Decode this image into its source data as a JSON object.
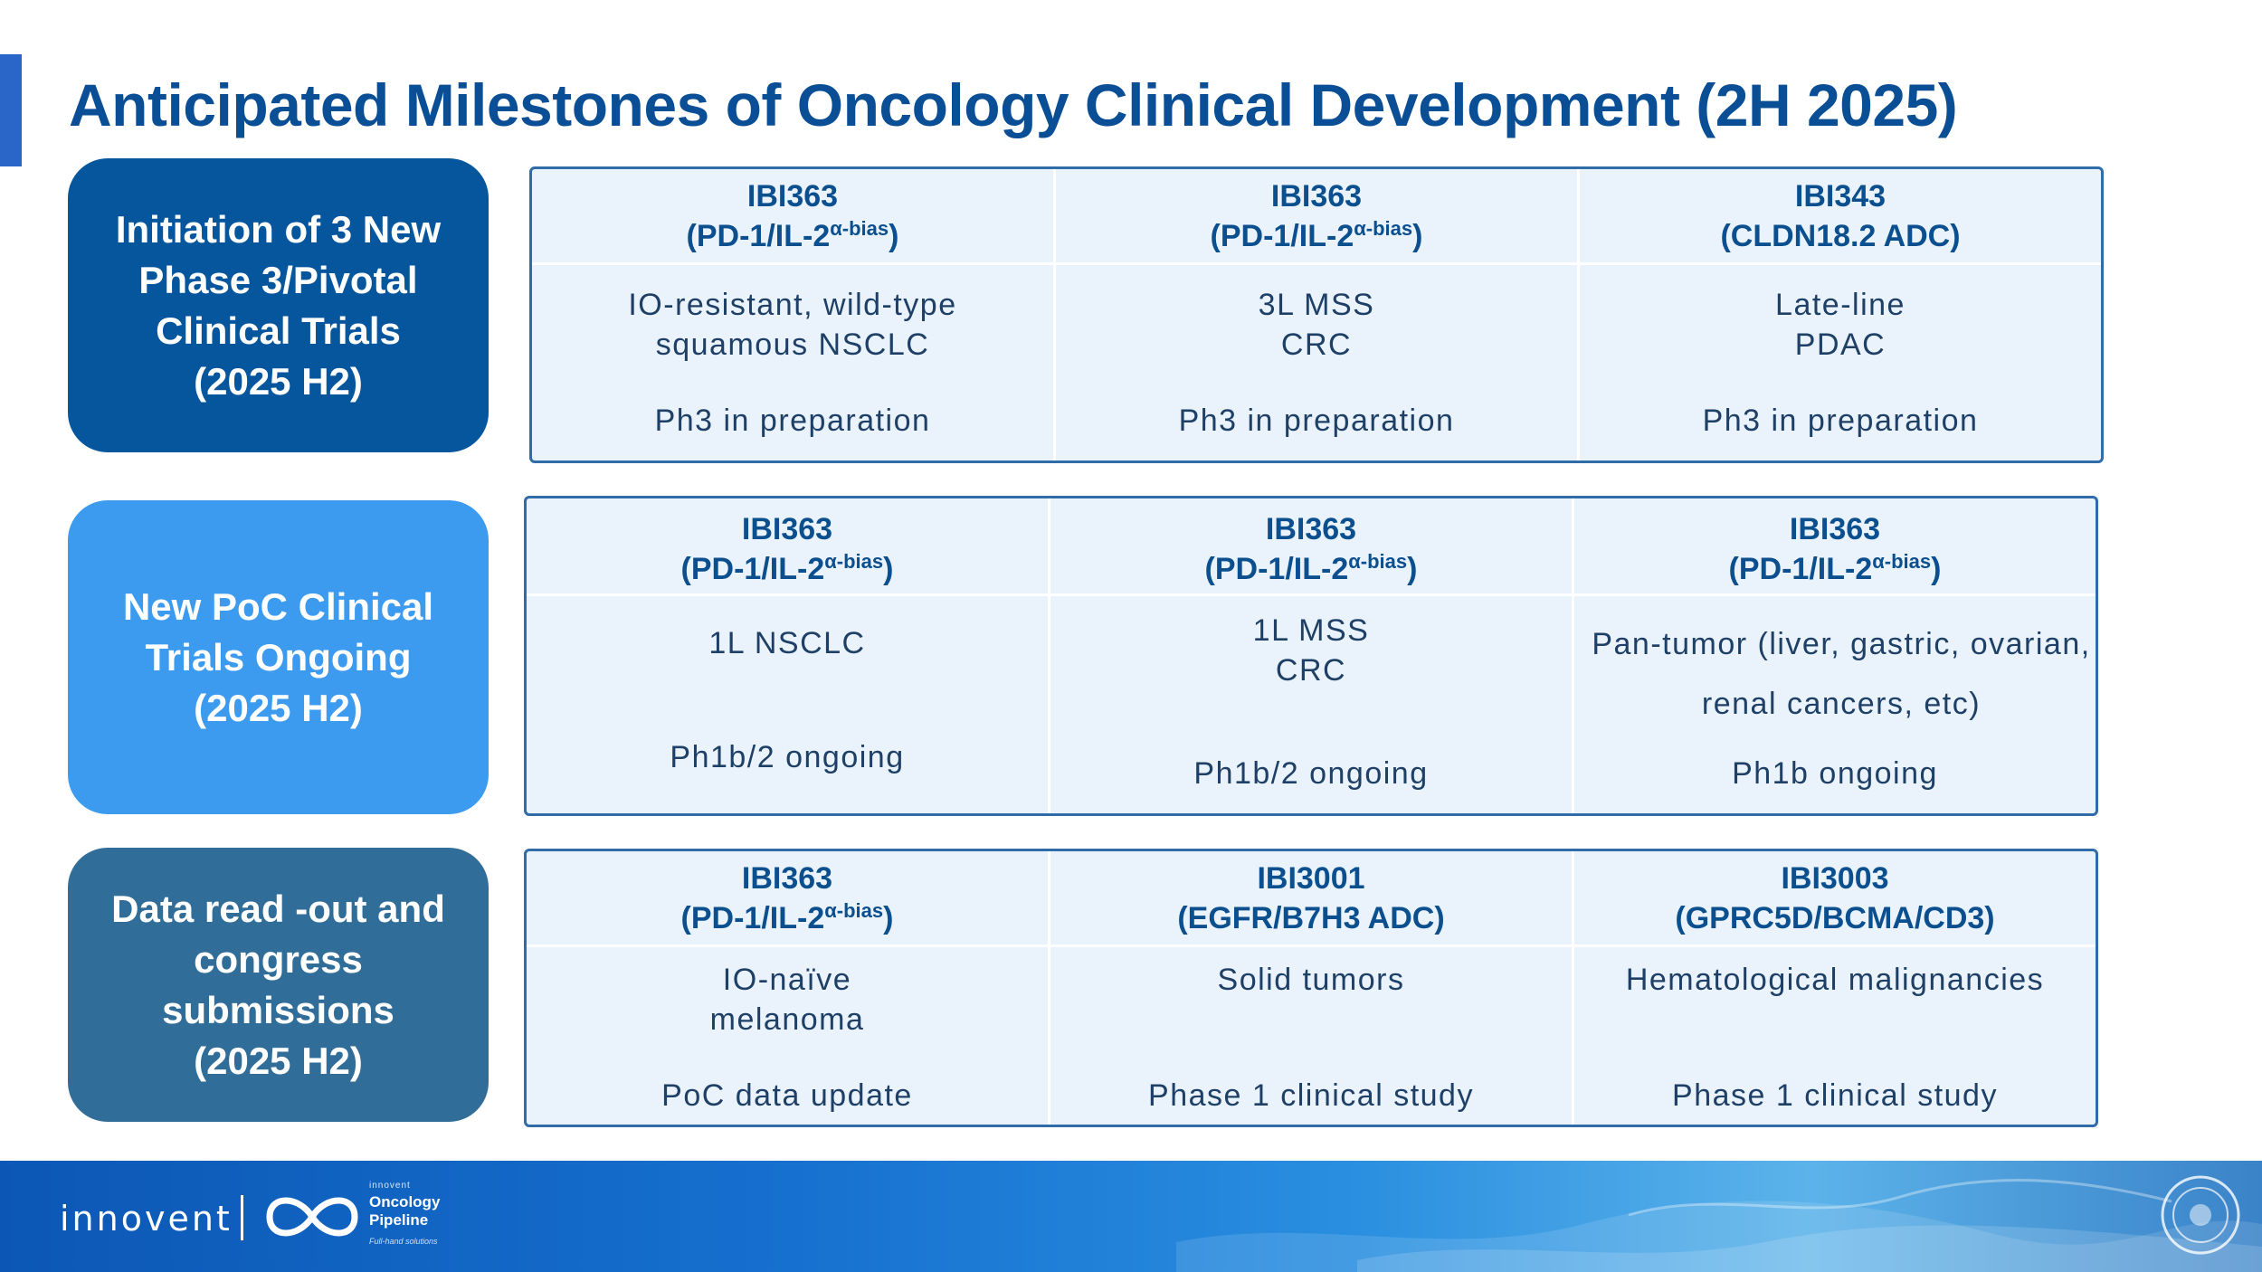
{
  "title": "Anticipated Milestones of Oncology Clinical Development (2H 2025)",
  "sections": [
    {
      "label": "Initiation of 3 New\nPhase 3/Pivotal\nClinical Trials\n(2025 H2)",
      "columns": [
        {
          "drug": "IBI363",
          "target_base": "(PD-1/IL-2",
          "target_sup": "α-bias",
          "target_end": ")",
          "indication": "IO-resistant, wild-type\nsquamous NSCLC",
          "stage": "Ph3 in preparation"
        },
        {
          "drug": "IBI363",
          "target_base": "(PD-1/IL-2",
          "target_sup": "α-bias",
          "target_end": ")",
          "indication": "3L MSS\nCRC",
          "stage": "Ph3 in preparation"
        },
        {
          "drug": "IBI343",
          "target_base": "(CLDN18.2 ADC)",
          "target_sup": "",
          "target_end": "",
          "indication": "Late-line\nPDAC",
          "stage": "Ph3 in preparation"
        }
      ]
    },
    {
      "label": "New PoC Clinical\nTrials Ongoing\n(2025 H2)",
      "columns": [
        {
          "drug": "IBI363",
          "target_base": "(PD-1/IL-2",
          "target_sup": "α-bias",
          "target_end": ")",
          "indication": "1L NSCLC",
          "stage": "Ph1b/2 ongoing"
        },
        {
          "drug": "IBI363",
          "target_base": "(PD-1/IL-2",
          "target_sup": "α-bias",
          "target_end": ")",
          "indication": "1L MSS\nCRC",
          "stage": "Ph1b/2 ongoing"
        },
        {
          "drug": "IBI363",
          "target_base": "(PD-1/IL-2",
          "target_sup": "α-bias",
          "target_end": ")",
          "indication": "Pan-tumor (liver, gastric, ovarian, renal cancers, etc)",
          "stage": "Ph1b ongoing"
        }
      ]
    },
    {
      "label": "Data read -out and\ncongress\nsubmissions\n(2025 H2)",
      "columns": [
        {
          "drug": "IBI363",
          "target_base": "(PD-1/IL-2",
          "target_sup": "α-bias",
          "target_end": ")",
          "indication": "IO-naïve\nmelanoma",
          "stage": "PoC data update"
        },
        {
          "drug": "IBI3001",
          "target_base": "(EGFR/B7H3 ADC)",
          "target_sup": "",
          "target_end": "",
          "indication": "Solid tumors",
          "stage": "Phase 1 clinical study"
        },
        {
          "drug": "IBI3003",
          "target_base": "(GPRC5D/BCMA/CD3)",
          "target_sup": "",
          "target_end": "",
          "indication": "Hematological malignancies",
          "stage": "Phase 1 clinical study"
        }
      ]
    }
  ],
  "footer": {
    "brand": "innovent",
    "pipeline_small": "innovent",
    "pipeline_name": "Oncology\nPipeline",
    "pipeline_tag": "Full-hand solutions"
  },
  "colors": {
    "title": "#0a4f96",
    "box1": "#06569e",
    "box2": "#3c9bef",
    "box3": "#306d98",
    "panel_bg": "#eaf3fb",
    "panel_border": "#2f6ca8"
  }
}
